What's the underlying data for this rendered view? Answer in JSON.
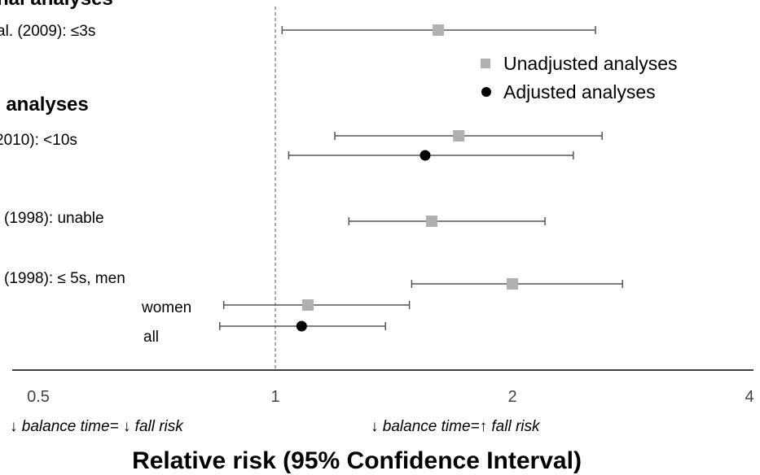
{
  "chart_data": {
    "type": "forest",
    "xscale": "log",
    "xlim": [
      0.5,
      4
    ],
    "reference_line": 1,
    "ticks": [
      {
        "value": 0.5,
        "label": "0.5"
      },
      {
        "value": 1,
        "label": "1"
      },
      {
        "value": 2,
        "label": "2"
      },
      {
        "value": 4,
        "label": "4"
      }
    ],
    "xlabel": "Relative risk (95% Confidence Interval)",
    "direction_labels": {
      "left": "↓ balance time= ↓ fall risk",
      "right": "↓ balance time=↑ fall risk"
    },
    "legend": {
      "placement": "top-right",
      "unadjusted": "Unadjusted analyses",
      "adjusted": "Adjusted analyses"
    },
    "colors": {
      "unadjusted": "#b0b0b0",
      "adjusted": "#000000",
      "whisker": "#555555",
      "axis": "#000000"
    },
    "sections": [
      {
        "label": "nal analyses"
      },
      {
        "label": "l analyses"
      }
    ],
    "rows": [
      {
        "label": "al. (2009):  ≤3s",
        "section": 0
      },
      {
        "label": "2010):  <10s",
        "section": 1
      },
      {
        "label": "(1998):  unable",
        "section": 1
      },
      {
        "label": "(1998): ≤ 5s, men",
        "section": 1
      },
      {
        "label": "women",
        "section": 1
      },
      {
        "label": "all",
        "section": 1
      }
    ],
    "estimates": [
      {
        "row": 0,
        "type": "unadjusted",
        "rr": 1.61,
        "ci": [
          1.02,
          2.55
        ]
      },
      {
        "row": 1,
        "type": "unadjusted",
        "rr": 1.71,
        "ci": [
          1.19,
          2.6
        ]
      },
      {
        "row": 1,
        "type": "adjusted",
        "rr": 1.55,
        "ci": [
          1.04,
          2.39
        ]
      },
      {
        "row": 2,
        "type": "unadjusted",
        "rr": 1.58,
        "ci": [
          1.24,
          2.2
        ]
      },
      {
        "row": 3,
        "type": "unadjusted",
        "rr": 2.0,
        "ci": [
          1.49,
          2.76
        ]
      },
      {
        "row": 4,
        "type": "unadjusted",
        "rr": 1.1,
        "ci": [
          0.86,
          1.48
        ]
      },
      {
        "row": 5,
        "type": "adjusted",
        "rr": 1.08,
        "ci": [
          0.85,
          1.38
        ]
      }
    ]
  }
}
